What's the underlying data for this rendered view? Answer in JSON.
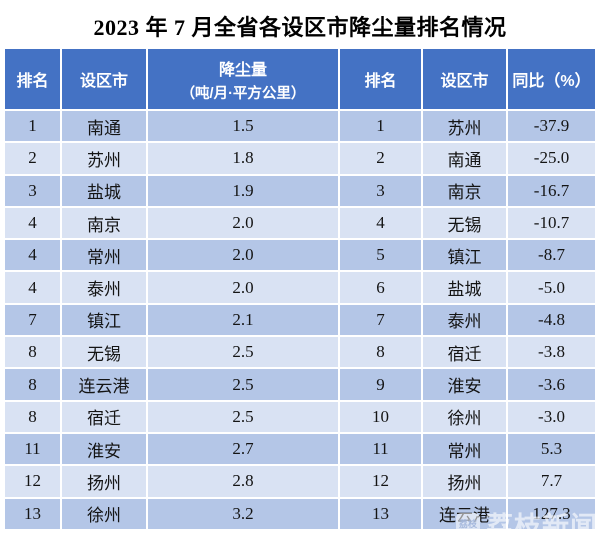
{
  "title": "2023 年 7 月全省各设区市降尘量排名情况",
  "header": {
    "rank_left": "排名",
    "city_left": "设区市",
    "dust_line1": "降尘量",
    "dust_line2": "（吨/月·平方公里）",
    "rank_right": "排名",
    "city_right": "设区市",
    "yoy": "同比（%）"
  },
  "chart_data": {
    "type": "table",
    "title": "2023 年 7 月全省各设区市降尘量排名情况",
    "columns": [
      "排名",
      "设区市",
      "降尘量（吨/月·平方公里）",
      "排名",
      "设区市",
      "同比（%）"
    ],
    "rows": [
      [
        "1",
        "南通",
        "1.5",
        "1",
        "苏州",
        "-37.9"
      ],
      [
        "2",
        "苏州",
        "1.8",
        "2",
        "南通",
        "-25.0"
      ],
      [
        "3",
        "盐城",
        "1.9",
        "3",
        "南京",
        "-16.7"
      ],
      [
        "4",
        "南京",
        "2.0",
        "4",
        "无锡",
        "-10.7"
      ],
      [
        "4",
        "常州",
        "2.0",
        "5",
        "镇江",
        "-8.7"
      ],
      [
        "4",
        "泰州",
        "2.0",
        "6",
        "盐城",
        "-5.0"
      ],
      [
        "7",
        "镇江",
        "2.1",
        "7",
        "泰州",
        "-4.8"
      ],
      [
        "8",
        "无锡",
        "2.5",
        "8",
        "宿迁",
        "-3.8"
      ],
      [
        "8",
        "连云港",
        "2.5",
        "9",
        "淮安",
        "-3.6"
      ],
      [
        "8",
        "宿迁",
        "2.5",
        "10",
        "徐州",
        "-3.0"
      ],
      [
        "11",
        "淮安",
        "2.7",
        "11",
        "常州",
        "5.3"
      ],
      [
        "12",
        "扬州",
        "2.8",
        "12",
        "扬州",
        "7.7"
      ],
      [
        "13",
        "徐州",
        "3.2",
        "13",
        "连云港",
        "127.3"
      ]
    ]
  },
  "watermark": {
    "logo_text": "荔枝",
    "text": "荔枝新闻"
  },
  "colors": {
    "header_bg": "#4472C4",
    "row_odd": "#B4C6E7",
    "row_even": "#D9E2F3",
    "header_text": "#FFFFFF",
    "body_text": "#141414"
  }
}
